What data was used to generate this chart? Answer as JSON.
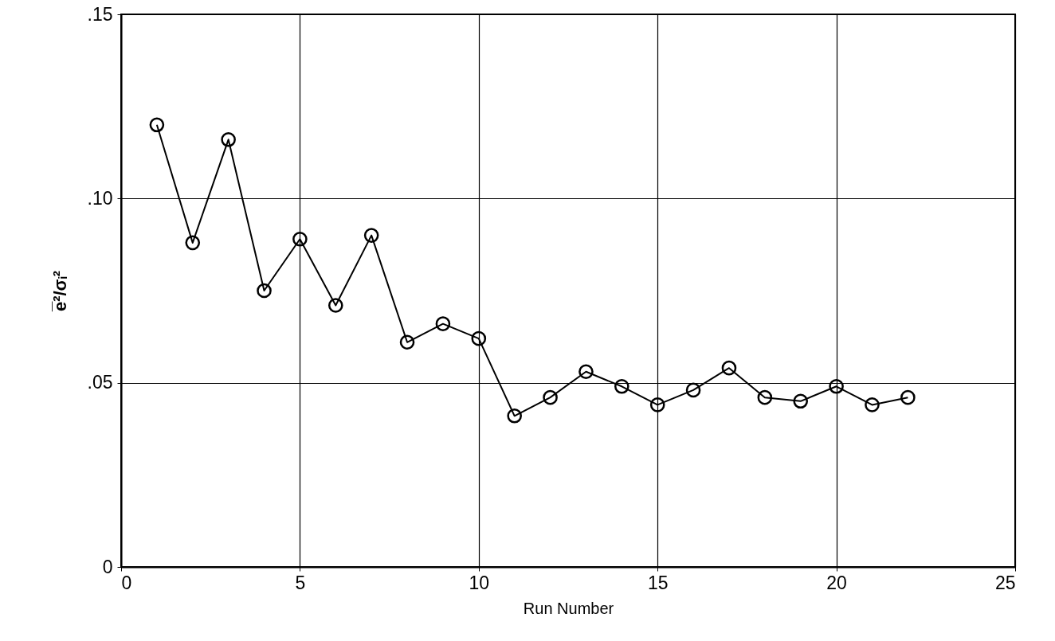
{
  "chart_data": {
    "type": "line",
    "xlabel": "Run Number",
    "ylabel": "e̅²/σᵢ²",
    "x": [
      1,
      2,
      3,
      4,
      5,
      6,
      7,
      8,
      9,
      10,
      11,
      12,
      13,
      14,
      15,
      16,
      17,
      18,
      19,
      20,
      21,
      22
    ],
    "series": [
      {
        "color": "#000000",
        "values": [
          0.12,
          0.088,
          0.116,
          0.075,
          0.089,
          0.071,
          0.09,
          0.061,
          0.066,
          0.062,
          0.041,
          0.046,
          0.053,
          0.049,
          0.044,
          0.048,
          0.054,
          0.046,
          0.045,
          0.049,
          0.044,
          0.046
        ]
      }
    ],
    "xlim": [
      0,
      25
    ],
    "xticks": [
      0,
      5,
      10,
      15,
      20,
      25
    ],
    "ylim": [
      0,
      0.15
    ],
    "yticks": [
      {
        "value": 0,
        "label": "0"
      },
      {
        "value": 0.05,
        "label": ".05"
      },
      {
        "value": 0.1,
        "label": ".10"
      },
      {
        "value": 0.15,
        "label": ".15"
      }
    ],
    "grid": true,
    "marker": "circle",
    "line_style": "solid",
    "legend": false
  }
}
